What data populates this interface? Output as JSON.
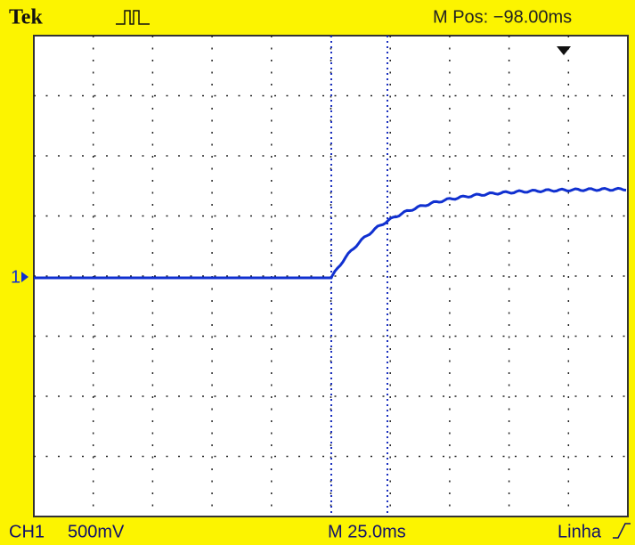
{
  "header": {
    "brand": "Tek",
    "position": "M Pos: −98.00ms"
  },
  "channel_marker": "1",
  "footer": {
    "channel": "CH1",
    "scale": "500mV",
    "timebase": "M 25.0ms",
    "trigger_source": "Linha"
  }
}
